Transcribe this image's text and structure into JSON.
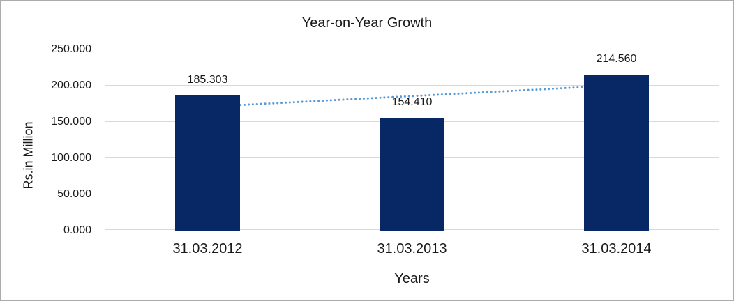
{
  "window": {
    "background": "#ffffff",
    "border_color": "#ababab"
  },
  "chart_data": {
    "type": "bar",
    "title": "Year-on-Year Growth",
    "xlabel": "Years",
    "ylabel": "Rs.in Million",
    "categories": [
      "31.03.2012",
      "31.03.2013",
      "31.03.2014"
    ],
    "values": [
      185.303,
      154.41,
      214.56
    ],
    "value_labels": [
      "185.303",
      "154.410",
      "214.560"
    ],
    "ylim": [
      0,
      250
    ],
    "y_ticks": [
      {
        "label": "250.000",
        "value": 250
      },
      {
        "label": "200.000",
        "value": 200
      },
      {
        "label": "150.000",
        "value": 150
      },
      {
        "label": "100.000",
        "value": 100
      },
      {
        "label": "50.000",
        "value": 50
      },
      {
        "label": "0.000",
        "value": 0
      }
    ],
    "grid": true,
    "legend": false,
    "bar_color": "#082765",
    "gridline_color": "#d9d9d9",
    "text_color": "#1a1a1a",
    "trendline": {
      "type": "linear",
      "style": "dotted",
      "color": "#5b9bd5"
    }
  }
}
